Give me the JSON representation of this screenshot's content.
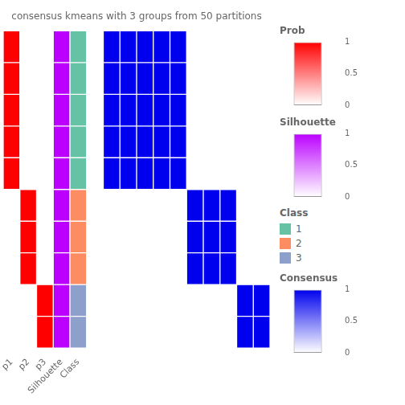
{
  "chart_data": {
    "type": "heatmap",
    "title": "consensus kmeans with 3 groups from 50 partitions",
    "cells": [
      [
        1,
        1,
        1,
        1,
        1,
        0,
        0,
        0,
        0,
        0
      ],
      [
        1,
        1,
        1,
        1,
        1,
        0,
        0,
        0,
        0,
        0
      ],
      [
        1,
        1,
        1,
        1,
        1,
        0,
        0,
        0,
        0,
        0
      ],
      [
        1,
        1,
        1,
        1,
        1,
        0,
        0,
        0,
        0,
        0
      ],
      [
        1,
        1,
        1,
        1,
        1,
        0,
        0,
        0,
        0,
        0
      ],
      [
        0,
        0,
        0,
        0,
        0,
        1,
        1,
        1,
        0,
        0
      ],
      [
        0,
        0,
        0,
        0,
        0,
        1,
        1,
        1,
        0,
        0
      ],
      [
        0,
        0,
        0,
        0,
        0,
        1,
        1,
        1,
        0,
        0
      ],
      [
        0,
        0,
        0,
        0,
        0,
        0,
        0,
        0,
        1,
        1
      ],
      [
        0,
        0,
        0,
        0,
        0,
        0,
        0,
        0,
        1,
        1
      ]
    ],
    "color_bar": "Consensus",
    "strips": [
      {
        "name": "p1",
        "values": [
          1,
          1,
          1,
          1,
          1,
          0,
          0,
          0,
          0,
          0
        ],
        "color_bar": "Prob"
      },
      {
        "name": "p2",
        "values": [
          0,
          0,
          0,
          0,
          0,
          1,
          1,
          1,
          0,
          0
        ],
        "color_bar": "Prob"
      },
      {
        "name": "p3",
        "values": [
          0,
          0,
          0,
          0,
          0,
          0,
          0,
          0,
          1,
          1
        ],
        "color_bar": "Prob"
      },
      {
        "name": "Silhouette",
        "values": [
          1,
          1,
          1,
          1,
          1,
          1,
          1,
          1,
          1,
          1
        ],
        "color_bar": "Silhouette"
      },
      {
        "name": "Class",
        "values": [
          1,
          1,
          1,
          1,
          1,
          2,
          2,
          2,
          3,
          3
        ],
        "classes": "Class"
      }
    ],
    "color_bars": [
      {
        "title": "Prob",
        "color": "#ff0000",
        "range": [
          0,
          1
        ],
        "ticks": [
          0,
          0.5,
          1
        ]
      },
      {
        "title": "Silhouette",
        "color": "#bb00ff",
        "range": [
          0,
          1
        ],
        "ticks": [
          0,
          0.5,
          1
        ]
      },
      {
        "title": "Consensus",
        "color": "#0000ee",
        "range": [
          0,
          1
        ],
        "ticks": [
          0,
          0.5,
          1
        ]
      }
    ],
    "classes": {
      "title": "Class",
      "values": [
        1,
        2,
        3
      ],
      "colors": [
        "#66c2a5",
        "#fc8d62",
        "#8da0cb"
      ]
    }
  }
}
